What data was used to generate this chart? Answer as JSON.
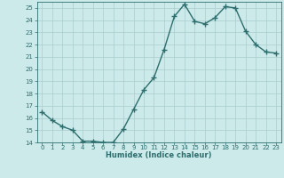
{
  "xlabel": "Humidex (Indice chaleur)",
  "x_values": [
    0,
    1,
    2,
    3,
    4,
    5,
    6,
    7,
    8,
    9,
    10,
    11,
    12,
    13,
    14,
    15,
    16,
    17,
    18,
    19,
    20,
    21,
    22,
    23
  ],
  "y_values": [
    16.5,
    15.8,
    15.3,
    15.0,
    14.1,
    14.1,
    14.0,
    14.0,
    15.1,
    16.7,
    18.3,
    19.3,
    21.6,
    24.3,
    25.3,
    23.9,
    23.7,
    24.2,
    25.1,
    25.0,
    23.1,
    22.0,
    21.4,
    21.3
  ],
  "line_color": "#2d6e6e",
  "marker": "+",
  "marker_size": 4,
  "bg_color": "#cceaea",
  "grid_color": "#aacccc",
  "tick_label_color": "#2d6e6e",
  "axis_label_color": "#2d6e6e",
  "ylim": [
    14,
    25.5
  ],
  "yticks": [
    14,
    15,
    16,
    17,
    18,
    19,
    20,
    21,
    22,
    23,
    24,
    25
  ],
  "xlim": [
    -0.5,
    23.5
  ],
  "xticks": [
    0,
    1,
    2,
    3,
    4,
    5,
    6,
    7,
    8,
    9,
    10,
    11,
    12,
    13,
    14,
    15,
    16,
    17,
    18,
    19,
    20,
    21,
    22,
    23
  ],
  "line_width": 1.0,
  "tick_fontsize": 5.0,
  "xlabel_fontsize": 6.0
}
